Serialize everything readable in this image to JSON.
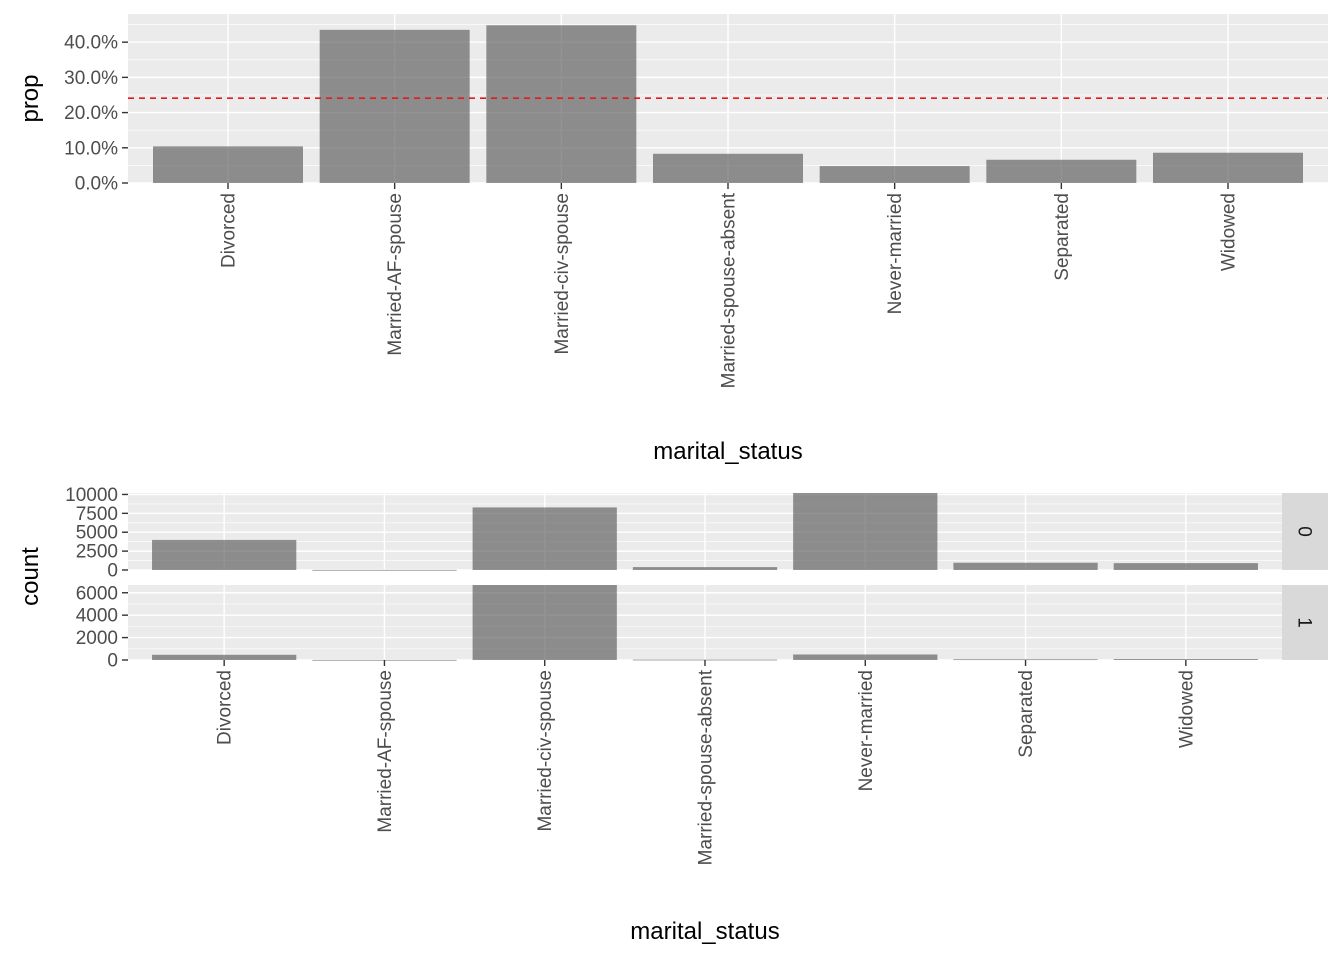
{
  "chart_data": [
    {
      "type": "bar",
      "xlabel": "marital_status",
      "ylabel": "prop",
      "categories": [
        "Divorced",
        "Married-AF-spouse",
        "Married-civ-spouse",
        "Married-spouse-absent",
        "Never-married",
        "Separated",
        "Widowed"
      ],
      "values": [
        0.104,
        0.435,
        0.448,
        0.083,
        0.048,
        0.066,
        0.086
      ],
      "ylim": [
        0,
        0.48
      ],
      "yticks": [
        0,
        0.1,
        0.2,
        0.3,
        0.4
      ],
      "ytick_labels": [
        "0.0%",
        "10.0%",
        "20.0%",
        "30.0%",
        "40.0%"
      ],
      "reference_line": {
        "y": 0.241,
        "style": "dashed",
        "color": "#e41a1c"
      },
      "bar_color": "#595959",
      "grid": true
    },
    {
      "type": "bar",
      "xlabel": "marital_status",
      "ylabel": "count",
      "categories": [
        "Divorced",
        "Married-AF-spouse",
        "Married-civ-spouse",
        "Married-spouse-absent",
        "Never-married",
        "Separated",
        "Widowed"
      ],
      "facets": [
        {
          "label": "0",
          "values": [
            3980,
            13,
            8284,
            384,
            10192,
            959,
            908
          ],
          "ylim": [
            0,
            10192
          ],
          "yticks": [
            0,
            2500,
            5000,
            7500,
            10000
          ],
          "ytick_labels": [
            "0",
            "2500",
            "5000",
            "7500",
            "10000"
          ]
        },
        {
          "label": "1",
          "values": [
            463,
            10,
            6692,
            34,
            491,
            66,
            85
          ],
          "ylim": [
            0,
            6692
          ],
          "yticks": [
            0,
            2000,
            4000,
            6000
          ],
          "ytick_labels": [
            "0",
            "2000",
            "4000",
            "6000"
          ]
        }
      ],
      "bar_color": "#595959",
      "grid": true
    }
  ]
}
